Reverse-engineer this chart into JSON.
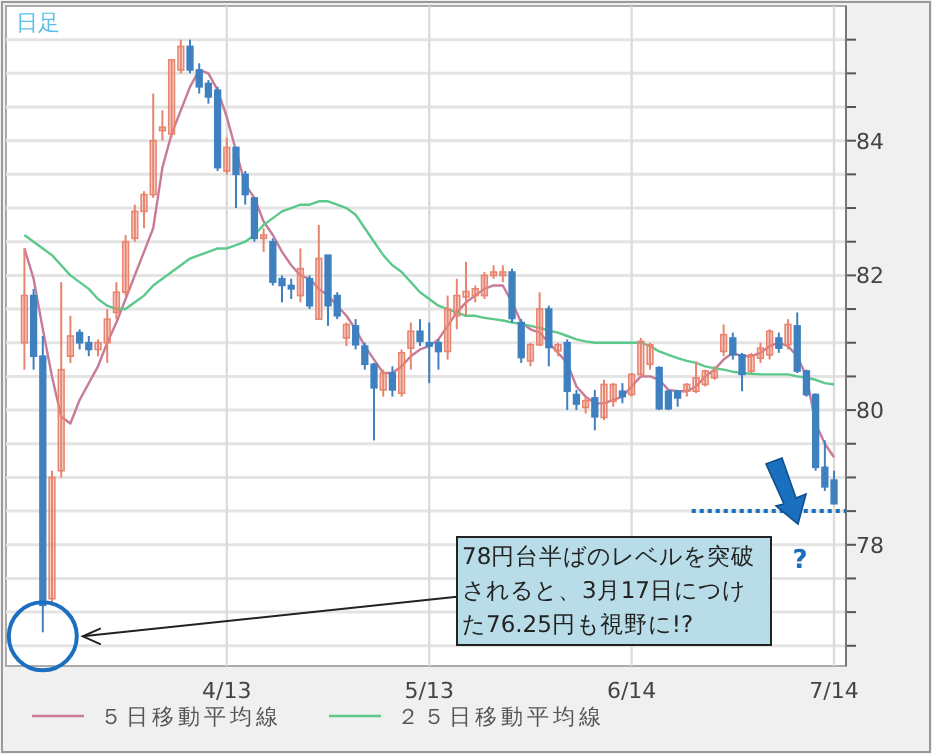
{
  "chart_data": {
    "type": "candlestick",
    "title": "日足",
    "categories": [
      null,
      null,
      null,
      null,
      null,
      null,
      null,
      null,
      null,
      null,
      null,
      null,
      null,
      null,
      null,
      null,
      null,
      null,
      null,
      null,
      null,
      null,
      "4/13",
      null,
      null,
      null,
      null,
      null,
      null,
      null,
      null,
      null,
      null,
      null,
      null,
      null,
      null,
      null,
      null,
      null,
      null,
      null,
      null,
      null,
      "5/13",
      null,
      null,
      null,
      null,
      null,
      null,
      null,
      null,
      null,
      null,
      null,
      null,
      null,
      null,
      null,
      null,
      null,
      null,
      null,
      null,
      null,
      "6/14",
      null,
      null,
      null,
      null,
      null,
      null,
      null,
      null,
      null,
      null,
      null,
      null,
      null,
      null,
      null,
      null,
      null,
      null,
      null,
      null,
      null,
      "7/14"
    ],
    "ohlc": [
      [
        81.0,
        82.4,
        80.6,
        81.7
      ],
      [
        81.7,
        81.8,
        80.6,
        80.8
      ],
      [
        80.8,
        81.1,
        76.7,
        77.1
      ],
      [
        77.2,
        79.1,
        77.1,
        79.0
      ],
      [
        79.1,
        81.9,
        79.0,
        80.6
      ],
      [
        80.8,
        81.4,
        80.7,
        81.1
      ],
      [
        81.15,
        81.2,
        80.9,
        81.0
      ],
      [
        81.0,
        81.1,
        80.8,
        80.9
      ],
      [
        80.9,
        81.05,
        80.8,
        81.0
      ],
      [
        81.0,
        81.5,
        80.7,
        81.35
      ],
      [
        81.45,
        81.9,
        81.35,
        81.75
      ],
      [
        81.75,
        82.6,
        81.7,
        82.5
      ],
      [
        82.55,
        83.05,
        82.5,
        82.95
      ],
      [
        82.95,
        83.25,
        82.7,
        83.2
      ],
      [
        83.2,
        84.7,
        83.15,
        84.0
      ],
      [
        84.15,
        84.45,
        84.0,
        84.2
      ],
      [
        84.1,
        85.2,
        84.05,
        85.2
      ],
      [
        85.05,
        85.5,
        85.0,
        85.4
      ],
      [
        85.4,
        85.5,
        85.0,
        85.05
      ],
      [
        85.05,
        85.15,
        84.7,
        84.8
      ],
      [
        84.85,
        84.9,
        84.55,
        84.65
      ],
      [
        84.75,
        84.8,
        83.55,
        83.6
      ],
      [
        83.55,
        84.05,
        83.5,
        83.9
      ],
      [
        83.9,
        83.9,
        83.0,
        83.5
      ],
      [
        83.5,
        83.55,
        83.05,
        83.2
      ],
      [
        83.15,
        83.15,
        82.5,
        82.55
      ],
      [
        82.55,
        82.7,
        82.35,
        82.6
      ],
      [
        82.5,
        82.55,
        81.85,
        81.9
      ],
      [
        81.95,
        82.0,
        81.6,
        81.85
      ],
      [
        81.85,
        81.95,
        81.65,
        81.8
      ],
      [
        81.7,
        82.4,
        81.6,
        82.1
      ],
      [
        81.95,
        82.0,
        81.5,
        81.55
      ],
      [
        81.35,
        82.75,
        81.35,
        82.25
      ],
      [
        82.3,
        82.3,
        81.25,
        81.55
      ],
      [
        81.7,
        81.75,
        81.35,
        81.4
      ],
      [
        81.07,
        81.3,
        80.95,
        81.27
      ],
      [
        81.25,
        81.35,
        80.9,
        80.97
      ],
      [
        80.95,
        81.0,
        80.6,
        80.68
      ],
      [
        80.68,
        80.7,
        79.55,
        80.33
      ],
      [
        80.3,
        80.6,
        80.2,
        80.55
      ],
      [
        80.55,
        80.65,
        80.2,
        80.3
      ],
      [
        80.25,
        80.9,
        80.2,
        80.85
      ],
      [
        80.92,
        81.3,
        80.6,
        81.17
      ],
      [
        81.17,
        81.35,
        80.95,
        81.02
      ],
      [
        81.0,
        81.3,
        80.4,
        80.95
      ],
      [
        81.0,
        81.05,
        80.6,
        80.87
      ],
      [
        80.87,
        81.7,
        80.75,
        81.5
      ],
      [
        81.4,
        81.95,
        81.2,
        81.7
      ],
      [
        81.68,
        82.2,
        81.4,
        81.76
      ],
      [
        81.7,
        81.85,
        81.6,
        81.8
      ],
      [
        81.7,
        82.05,
        81.65,
        82.0
      ],
      [
        82.0,
        82.15,
        81.95,
        82.05
      ],
      [
        82.0,
        82.15,
        81.9,
        82.05
      ],
      [
        82.05,
        82.1,
        81.3,
        81.36
      ],
      [
        81.3,
        81.35,
        80.7,
        80.78
      ],
      [
        80.73,
        81.0,
        80.65,
        80.97
      ],
      [
        80.97,
        81.75,
        80.95,
        81.5
      ],
      [
        81.5,
        81.55,
        80.65,
        80.93
      ],
      [
        80.88,
        81.0,
        80.8,
        80.97
      ],
      [
        81.0,
        81.05,
        80.0,
        80.28
      ],
      [
        80.23,
        80.3,
        80.0,
        80.09
      ],
      [
        80.04,
        80.2,
        79.95,
        80.14
      ],
      [
        80.18,
        80.3,
        79.7,
        79.9
      ],
      [
        79.89,
        80.45,
        79.85,
        80.38
      ],
      [
        80.13,
        80.4,
        80.05,
        80.38
      ],
      [
        80.28,
        80.4,
        80.1,
        80.2
      ],
      [
        80.23,
        80.55,
        80.2,
        80.53
      ],
      [
        80.53,
        81.07,
        80.5,
        81.02
      ],
      [
        80.68,
        81.0,
        80.6,
        80.97
      ],
      [
        80.63,
        80.65,
        80.0,
        80.02
      ],
      [
        80.28,
        80.3,
        80.0,
        80.02
      ],
      [
        80.28,
        80.3,
        80.05,
        80.18
      ],
      [
        80.28,
        80.4,
        80.2,
        80.38
      ],
      [
        80.28,
        80.72,
        80.25,
        80.48
      ],
      [
        80.38,
        80.6,
        80.35,
        80.58
      ],
      [
        80.48,
        80.65,
        80.45,
        80.58
      ],
      [
        80.87,
        81.27,
        80.8,
        81.12
      ],
      [
        81.07,
        81.15,
        80.75,
        80.82
      ],
      [
        80.82,
        80.85,
        80.28,
        80.53
      ],
      [
        80.58,
        80.85,
        80.55,
        80.82
      ],
      [
        80.77,
        81.0,
        80.7,
        80.92
      ],
      [
        80.82,
        81.2,
        80.75,
        81.17
      ],
      [
        81.07,
        81.15,
        80.85,
        80.92
      ],
      [
        80.97,
        81.35,
        80.9,
        81.27
      ],
      [
        81.25,
        81.45,
        80.55,
        80.58
      ],
      [
        80.58,
        80.6,
        80.2,
        80.23
      ],
      [
        80.23,
        80.25,
        79.1,
        79.15
      ],
      [
        79.15,
        79.55,
        78.8,
        78.86
      ],
      [
        78.96,
        79.1,
        78.6,
        78.61
      ]
    ],
    "colors": [
      "#e8846f",
      "#3f80c0",
      "#3f80c0",
      "#e8846f",
      "#e8846f",
      "#e8846f",
      "#3f80c0",
      "#3f80c0",
      "#e8846f",
      "#e8846f",
      "#e8846f",
      "#e8846f",
      "#e8846f",
      "#e8846f",
      "#e8846f",
      "#e8846f",
      "#e8846f",
      "#e8846f",
      "#3f80c0",
      "#3f80c0",
      "#3f80c0",
      "#3f80c0",
      "#e8846f",
      "#3f80c0",
      "#3f80c0",
      "#3f80c0",
      "#e8846f",
      "#3f80c0",
      "#3f80c0",
      "#3f80c0",
      "#e8846f",
      "#3f80c0",
      "#e8846f",
      "#3f80c0",
      "#3f80c0",
      "#e8846f",
      "#3f80c0",
      "#3f80c0",
      "#3f80c0",
      "#e8846f",
      "#3f80c0",
      "#e8846f",
      "#e8846f",
      "#3f80c0",
      "#3f80c0",
      "#3f80c0",
      "#e8846f",
      "#e8846f",
      "#e8846f",
      "#e8846f",
      "#e8846f",
      "#e8846f",
      "#e8846f",
      "#3f80c0",
      "#3f80c0",
      "#e8846f",
      "#e8846f",
      "#3f80c0",
      "#e8846f",
      "#3f80c0",
      "#3f80c0",
      "#e8846f",
      "#3f80c0",
      "#e8846f",
      "#e8846f",
      "#3f80c0",
      "#e8846f",
      "#e8846f",
      "#e8846f",
      "#3f80c0",
      "#3f80c0",
      "#3f80c0",
      "#e8846f",
      "#e8846f",
      "#e8846f",
      "#e8846f",
      "#e8846f",
      "#3f80c0",
      "#3f80c0",
      "#e8846f",
      "#e8846f",
      "#e8846f",
      "#3f80c0",
      "#e8846f",
      "#3f80c0",
      "#3f80c0",
      "#3f80c0",
      "#3f80c0",
      "#3f80c0"
    ],
    "series": [
      {
        "name": "５日移動平均線",
        "type": "line",
        "color": "#c77b98",
        "values": [
          82.4,
          81.95,
          81.2,
          80.5,
          79.9,
          79.8,
          80.15,
          80.4,
          80.65,
          81.0,
          81.3,
          81.65,
          82.0,
          82.35,
          82.7,
          83.6,
          84.1,
          84.45,
          84.8,
          85.05,
          85.0,
          84.75,
          84.35,
          83.85,
          83.35,
          83.15,
          82.8,
          82.6,
          82.35,
          82.15,
          82.0,
          81.95,
          81.8,
          81.7,
          81.55,
          81.4,
          81.2,
          80.95,
          80.75,
          80.55,
          80.55,
          80.65,
          80.8,
          80.9,
          80.95,
          81.05,
          81.25,
          81.45,
          81.6,
          81.7,
          81.8,
          81.85,
          81.85,
          81.6,
          81.3,
          81.2,
          81.15,
          81.0,
          80.85,
          80.7,
          80.35,
          80.2,
          80.1,
          80.1,
          80.15,
          80.2,
          80.35,
          80.5,
          80.5,
          80.45,
          80.3,
          80.28,
          80.28,
          80.35,
          80.5,
          80.6,
          80.75,
          80.85,
          80.8,
          80.8,
          80.85,
          80.95,
          81.0,
          80.95,
          80.8,
          80.5,
          79.8,
          79.5,
          79.3
        ]
      },
      {
        "name": "２５日移動平均線",
        "type": "line",
        "color": "#5cc88c",
        "values": [
          82.6,
          82.5,
          82.4,
          82.3,
          82.15,
          82.0,
          81.9,
          81.8,
          81.65,
          81.55,
          81.5,
          81.5,
          81.6,
          81.7,
          81.85,
          81.95,
          82.05,
          82.15,
          82.25,
          82.3,
          82.35,
          82.4,
          82.4,
          82.45,
          82.5,
          82.6,
          82.75,
          82.85,
          82.95,
          83.0,
          83.05,
          83.05,
          83.1,
          83.1,
          83.05,
          83.0,
          82.9,
          82.7,
          82.5,
          82.3,
          82.15,
          82.05,
          81.9,
          81.75,
          81.65,
          81.55,
          81.5,
          81.45,
          81.4,
          81.4,
          81.37,
          81.35,
          81.33,
          81.3,
          81.28,
          81.25,
          81.22,
          81.18,
          81.15,
          81.1,
          81.05,
          81.02,
          81.0,
          81.0,
          81.0,
          81.0,
          81.0,
          81.0,
          80.95,
          80.87,
          80.82,
          80.77,
          80.73,
          80.7,
          80.65,
          80.62,
          80.6,
          80.57,
          80.55,
          80.54,
          80.53,
          80.53,
          80.53,
          80.53,
          80.5,
          80.48,
          80.45,
          80.4,
          80.38
        ]
      }
    ],
    "ylim": [
      76.2,
      86.0
    ],
    "yticks": [
      {
        "value": 76.5,
        "label": null
      },
      {
        "value": 77,
        "label": null
      },
      {
        "value": 77.5,
        "label": null
      },
      78,
      {
        "value": 78.5,
        "label": null
      },
      {
        "value": 79,
        "label": null
      },
      {
        "value": 79.5,
        "label": null
      },
      80,
      {
        "value": 80.5,
        "label": null
      },
      {
        "value": 81,
        "label": null
      },
      {
        "value": 81.5,
        "label": null
      },
      82,
      {
        "value": 82.5,
        "label": null
      },
      {
        "value": 83,
        "label": null
      },
      {
        "value": 83.5,
        "label": null
      },
      84,
      {
        "value": 84.5,
        "label": null
      },
      {
        "value": 85,
        "label": null
      },
      {
        "value": 85.5,
        "label": null
      }
    ],
    "grid": true,
    "legend": "bottom",
    "ref_lines": [
      {
        "axis": "y",
        "value": 78.5,
        "color": "#1a6fc0",
        "line_style": "dotted"
      }
    ],
    "annotations": [
      "78円台半ばのレベルを突破されると、3月17日につけた76.25円も視野に!?",
      "?"
    ]
  }
}
